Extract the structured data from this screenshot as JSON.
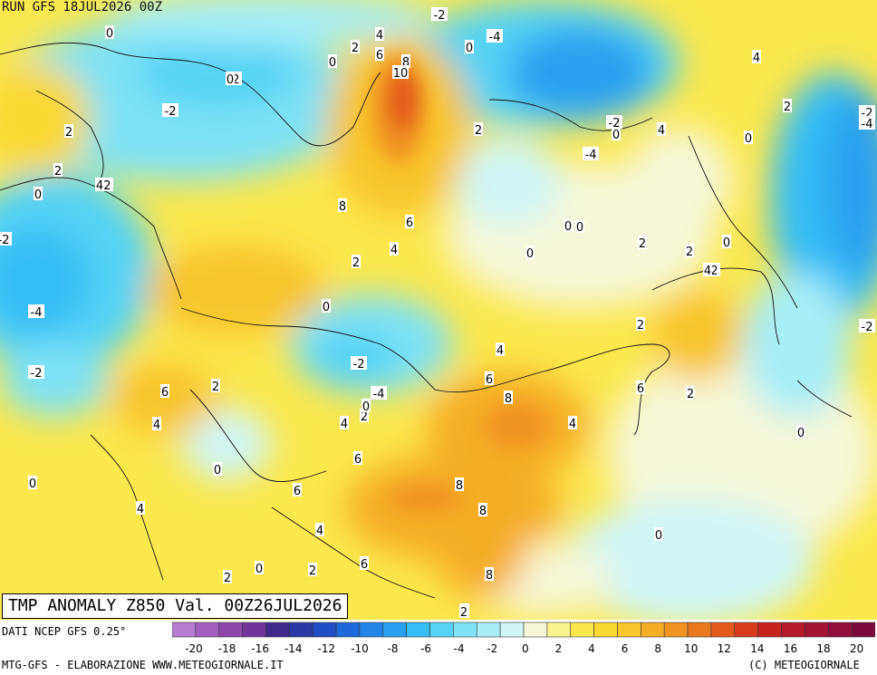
{
  "header": {
    "run": "RUN GFS 18JUL2026 00Z"
  },
  "title": "TMP ANOMALY Z850 Val. 00Z26JUL2026",
  "footer": {
    "data_source": "DATI NCEP GFS 0.25°",
    "credit": "MTG-GFS - ELABORAZIONE WWW.METEOGIORNALE.IT",
    "copyright": "(C) METEOGIORNALE"
  },
  "legend": {
    "colors": [
      "#b57ccf",
      "#a35fbf",
      "#8e46ad",
      "#73349a",
      "#3f2a8c",
      "#2a39a6",
      "#1f4ec4",
      "#1f68d9",
      "#2384e8",
      "#2aa0f0",
      "#36bdf5",
      "#55d3f5",
      "#7fe2f5",
      "#a7eef7",
      "#d0f6f7",
      "#f6f7d8",
      "#fbf38e",
      "#fbe84e",
      "#fad832",
      "#f8c52a",
      "#f5ad26",
      "#f09322",
      "#ea781f",
      "#e35a1c",
      "#d63c1c",
      "#c7241e",
      "#b51a2a",
      "#a31435",
      "#910e3d",
      "#7d0a3f"
    ],
    "ticks": [
      "-20",
      "-18",
      "-16",
      "-14",
      "-12",
      "-10",
      "-8",
      "-6",
      "-4",
      "-2",
      "0",
      "2",
      "4",
      "6",
      "8",
      "10",
      "12",
      "14",
      "16",
      "18",
      "20"
    ]
  },
  "labels": [
    {
      "t": "0"
    },
    {
      "t": "-2"
    },
    {
      "t": "-4"
    },
    {
      "t": "4"
    },
    {
      "t": "2"
    },
    {
      "t": "0"
    },
    {
      "t": "8"
    },
    {
      "t": "10"
    },
    {
      "t": "6"
    },
    {
      "t": "4"
    },
    {
      "t": "2"
    },
    {
      "t": "-2"
    },
    {
      "t": "-2"
    },
    {
      "t": "2"
    },
    {
      "t": "0"
    },
    {
      "t": "-2"
    },
    {
      "t": "4"
    },
    {
      "t": "2"
    },
    {
      "t": "-2"
    },
    {
      "t": "0"
    },
    {
      "t": "-4"
    },
    {
      "t": "-4"
    },
    {
      "t": "-2"
    },
    {
      "t": "0"
    },
    {
      "t": "4"
    },
    {
      "t": "2"
    },
    {
      "t": "0"
    },
    {
      "t": "-2"
    },
    {
      "t": "-4"
    },
    {
      "t": "4"
    },
    {
      "t": "-4"
    },
    {
      "t": "0"
    },
    {
      "t": "8"
    },
    {
      "t": "6"
    },
    {
      "t": "4"
    },
    {
      "t": "2"
    },
    {
      "t": "0"
    },
    {
      "t": "-2"
    },
    {
      "t": "0"
    },
    {
      "t": "-2"
    },
    {
      "t": "4"
    },
    {
      "t": "2"
    },
    {
      "t": "6"
    },
    {
      "t": "2"
    },
    {
      "t": "4"
    },
    {
      "t": "6"
    },
    {
      "t": "8"
    },
    {
      "t": "4"
    },
    {
      "t": "6"
    },
    {
      "t": "2"
    },
    {
      "t": "0"
    },
    {
      "t": "2"
    },
    {
      "t": "2"
    },
    {
      "t": "4"
    },
    {
      "t": "0"
    },
    {
      "t": "0"
    },
    {
      "t": "2"
    },
    {
      "t": "6"
    },
    {
      "t": "0"
    },
    {
      "t": "4"
    },
    {
      "t": "4"
    },
    {
      "t": "0"
    },
    {
      "t": "6"
    },
    {
      "t": "8"
    },
    {
      "t": "8"
    },
    {
      "t": "8"
    },
    {
      "t": "6"
    },
    {
      "t": "2"
    },
    {
      "t": "0"
    },
    {
      "t": "2"
    },
    {
      "t": "0"
    },
    {
      "t": "-2"
    },
    {
      "t": "0"
    },
    {
      "t": "-2"
    },
    {
      "t": "-4"
    },
    {
      "t": "-4"
    },
    {
      "t": "4"
    },
    {
      "t": "0"
    },
    {
      "t": "6"
    },
    {
      "t": "2"
    },
    {
      "t": "-2"
    }
  ]
}
